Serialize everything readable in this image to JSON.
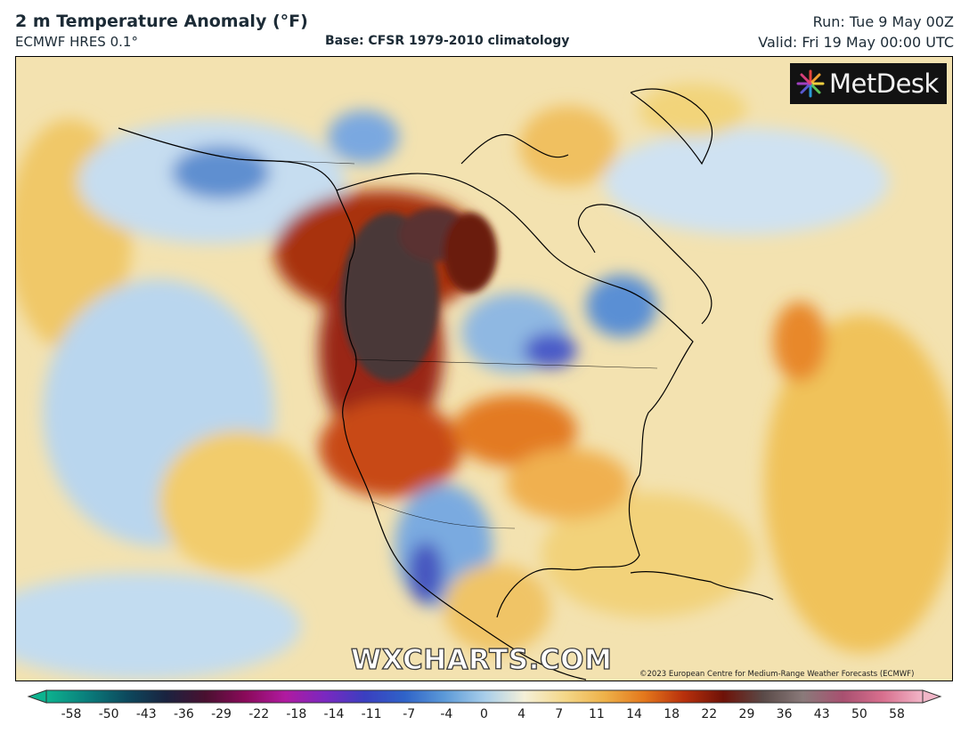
{
  "header": {
    "title": "2 m Temperature Anomaly (°F)",
    "model": "ECMWF HRES 0.1°",
    "base": "Base: CFSR 1979-2010 climatology",
    "run": "Run: Tue 9 May 00Z",
    "valid": "Valid: Fri 19 May 00:00 UTC"
  },
  "map": {
    "logo_text": "MetDesk",
    "watermark": "WXCHARTS.COM",
    "copyright": "©2023 European Centre for Medium-Range Weather Forecasts (ECMWF)"
  },
  "colorbar": {
    "ticks": [
      "-58",
      "-50",
      "-43",
      "-36",
      "-29",
      "-22",
      "-18",
      "-14",
      "-11",
      "-7",
      "-4",
      "0",
      "4",
      "7",
      "11",
      "14",
      "18",
      "22",
      "29",
      "36",
      "43",
      "50",
      "58"
    ],
    "colors": [
      "#0db38f",
      "#0a7f7c",
      "#0c4a5e",
      "#1a2340",
      "#4a1030",
      "#8a0a5a",
      "#b01aa0",
      "#7a28c0",
      "#3a3fc0",
      "#2f63c8",
      "#5c9ad8",
      "#a7cdea",
      "#f4f0d8",
      "#f4d88a",
      "#eeb24a",
      "#e4781c",
      "#b8300c",
      "#6e1208",
      "#5a4a48",
      "#8a7a7a",
      "#a85070",
      "#d86f8e",
      "#f2b6c8"
    ]
  }
}
